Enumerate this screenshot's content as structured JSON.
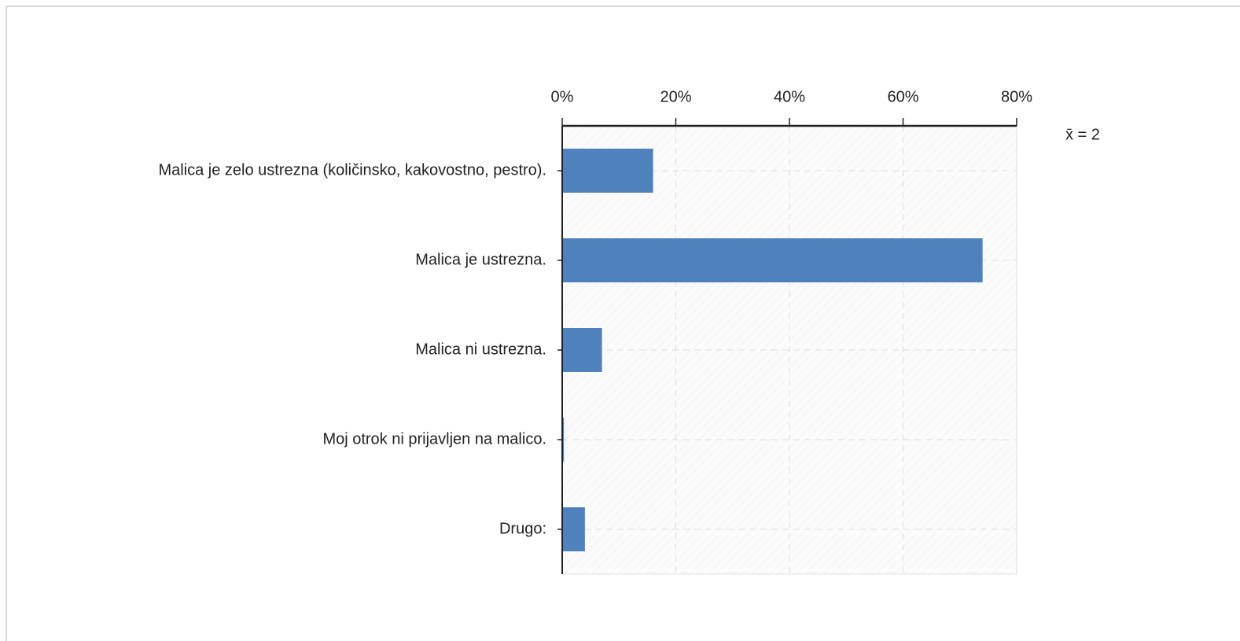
{
  "chart_data": {
    "type": "bar",
    "orientation": "horizontal",
    "categories": [
      "Malica je zelo ustrezna (količinsko, kakovostno, pestro).",
      "Malica je ustrezna.",
      "Malica ni ustrezna.",
      "Moj otrok ni prijavljen na malico.",
      "Drugo:"
    ],
    "values": [
      16,
      74,
      7,
      0.3,
      4
    ],
    "color": "#4f81bd",
    "xlim": [
      0,
      80
    ],
    "xticks": [
      {
        "value": 0,
        "label": "0%"
      },
      {
        "value": 20,
        "label": "20%"
      },
      {
        "value": 40,
        "label": "40%"
      },
      {
        "value": 60,
        "label": "60%"
      },
      {
        "value": 80,
        "label": "80%"
      }
    ],
    "annotations": [
      "x̄ = 2"
    ],
    "grid": true
  }
}
